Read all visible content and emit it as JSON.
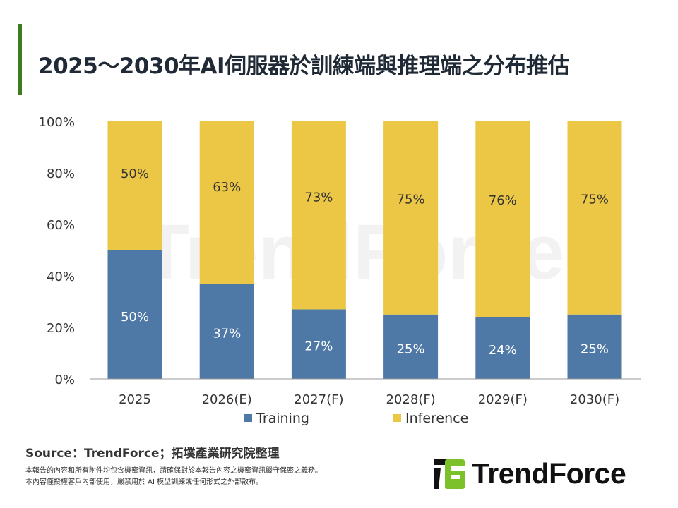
{
  "title": "2025～2030年AI伺服器於訓練端與推理端之分布推估",
  "chart_data": {
    "type": "bar",
    "stacked": true,
    "categories": [
      "2025",
      "2026(E)",
      "2027(F)",
      "2028(F)",
      "2029(F)",
      "2030(F)"
    ],
    "series": [
      {
        "name": "Training",
        "values": [
          50,
          37,
          27,
          25,
          24,
          25
        ],
        "color": "#4e78a6"
      },
      {
        "name": "Inference",
        "values": [
          50,
          63,
          73,
          75,
          76,
          75
        ],
        "color": "#ecc746"
      }
    ],
    "yticks": [
      "0%",
      "20%",
      "40%",
      "60%",
      "80%",
      "100%"
    ],
    "ylim": [
      0,
      100
    ],
    "legend": "bottom",
    "grid": false
  },
  "source": "Source：TrendForce；拓墣產業研究院整理",
  "notes": [
    "本報告的內容和所有附件均包含機密資訊，請確保對於本報告內容之機密資訊嚴守保密之義務。",
    "本內容僅授權客戶內部使用，嚴禁用於 AI 模型訓練或任何形式之外部散布。"
  ],
  "logo_text": "TrendForce",
  "watermark": "TrendForce"
}
